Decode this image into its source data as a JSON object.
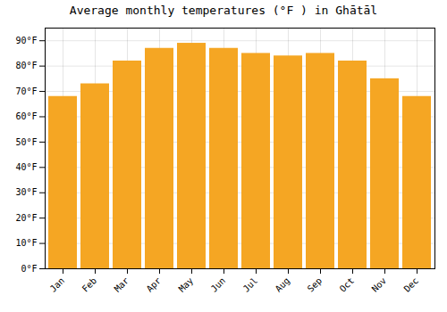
{
  "chart_data": {
    "type": "bar",
    "title": "Average monthly temperatures (°F ) in Ghātāl",
    "categories": [
      "Jan",
      "Feb",
      "Mar",
      "Apr",
      "May",
      "Jun",
      "Jul",
      "Aug",
      "Sep",
      "Oct",
      "Nov",
      "Dec"
    ],
    "values": [
      68,
      73,
      82,
      87,
      89,
      87,
      85,
      84,
      85,
      82,
      75,
      68
    ],
    "color": "#F5A623",
    "ylim": [
      0,
      95
    ],
    "yticks": [
      {
        "value": 0,
        "label": "0°F"
      },
      {
        "value": 10,
        "label": "10°F"
      },
      {
        "value": 20,
        "label": "20°F"
      },
      {
        "value": 30,
        "label": "30°F"
      },
      {
        "value": 40,
        "label": "40°F"
      },
      {
        "value": 50,
        "label": "50°F"
      },
      {
        "value": 60,
        "label": "60°F"
      },
      {
        "value": 70,
        "label": "70°F"
      },
      {
        "value": 80,
        "label": "80°F"
      },
      {
        "value": 90,
        "label": "90°F"
      }
    ],
    "grid": true
  }
}
